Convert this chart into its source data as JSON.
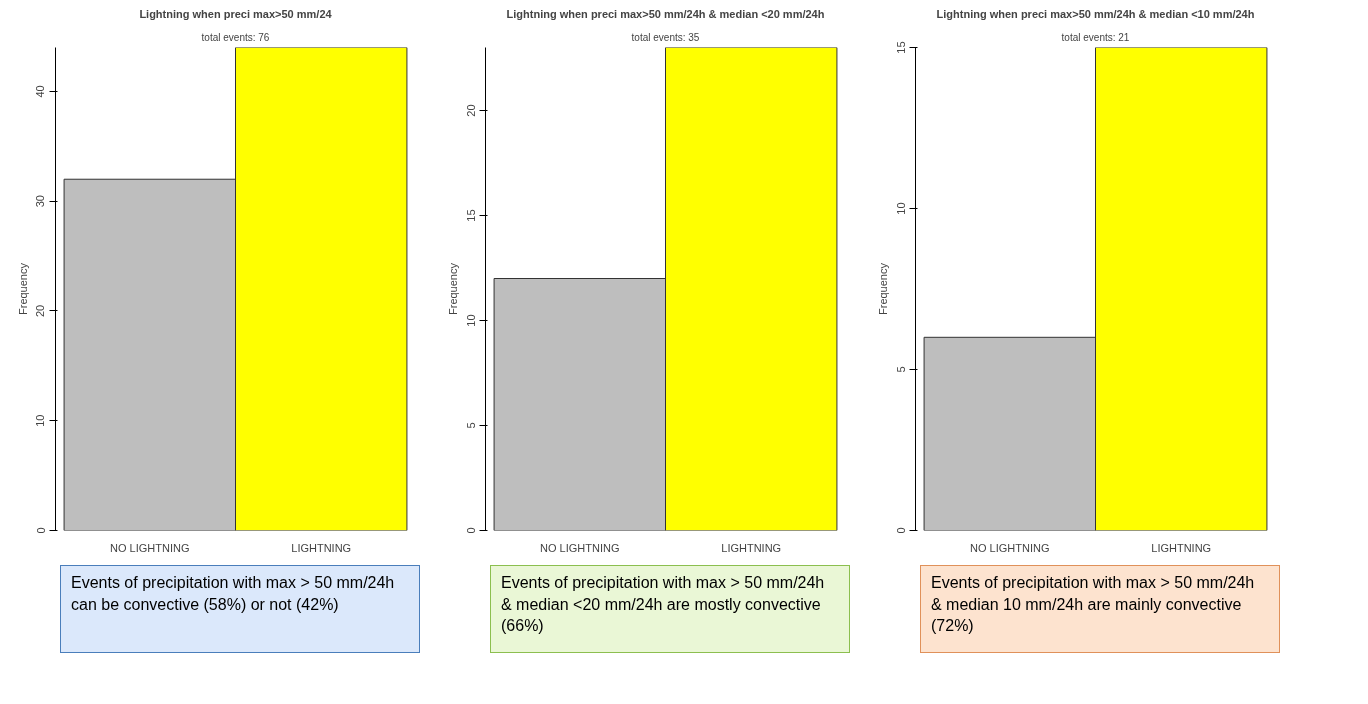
{
  "chart_data": [
    {
      "type": "bar",
      "title": "Lightning when preci max>50 mm/24",
      "subtitle": "total events: 76",
      "ylabel": "Frequency",
      "categories": [
        "NO LIGHTNING",
        "LIGHTNING"
      ],
      "values": [
        32,
        44
      ],
      "colors": [
        "#bebebe",
        "#ffff00"
      ],
      "ylim": [
        0,
        44
      ],
      "yticks": [
        0,
        10,
        20,
        30,
        40
      ],
      "grid": false,
      "annotations": [
        "Events of precipitation with max > 50 mm/24h  can be convective (58%) or not (42%)"
      ]
    },
    {
      "type": "bar",
      "title": "Lightning when preci max>50 mm/24h & median <20 mm/24h",
      "subtitle": "total events: 35",
      "ylabel": "Frequency",
      "categories": [
        "NO LIGHTNING",
        "LIGHTNING"
      ],
      "values": [
        12,
        23
      ],
      "colors": [
        "#bebebe",
        "#ffff00"
      ],
      "ylim": [
        0,
        23
      ],
      "yticks": [
        0,
        5,
        10,
        15,
        20
      ],
      "grid": false,
      "annotations": [
        "Events of precipitation with max > 50 mm/24h & median <20 mm/24h are mostly convective (66%)"
      ]
    },
    {
      "type": "bar",
      "title": "Lightning when preci max>50 mm/24h & median <10 mm/24h",
      "subtitle": "total events: 21",
      "ylabel": "Frequency",
      "categories": [
        "NO LIGHTNING",
        "LIGHTNING"
      ],
      "values": [
        6,
        15
      ],
      "colors": [
        "#bebebe",
        "#ffff00"
      ],
      "ylim": [
        0,
        15
      ],
      "yticks": [
        0,
        5,
        10,
        15
      ],
      "grid": false,
      "annotations": [
        "Events of precipitation with max > 50 mm/24h & median 10 mm/24h are mainly convective (72%)"
      ]
    }
  ]
}
